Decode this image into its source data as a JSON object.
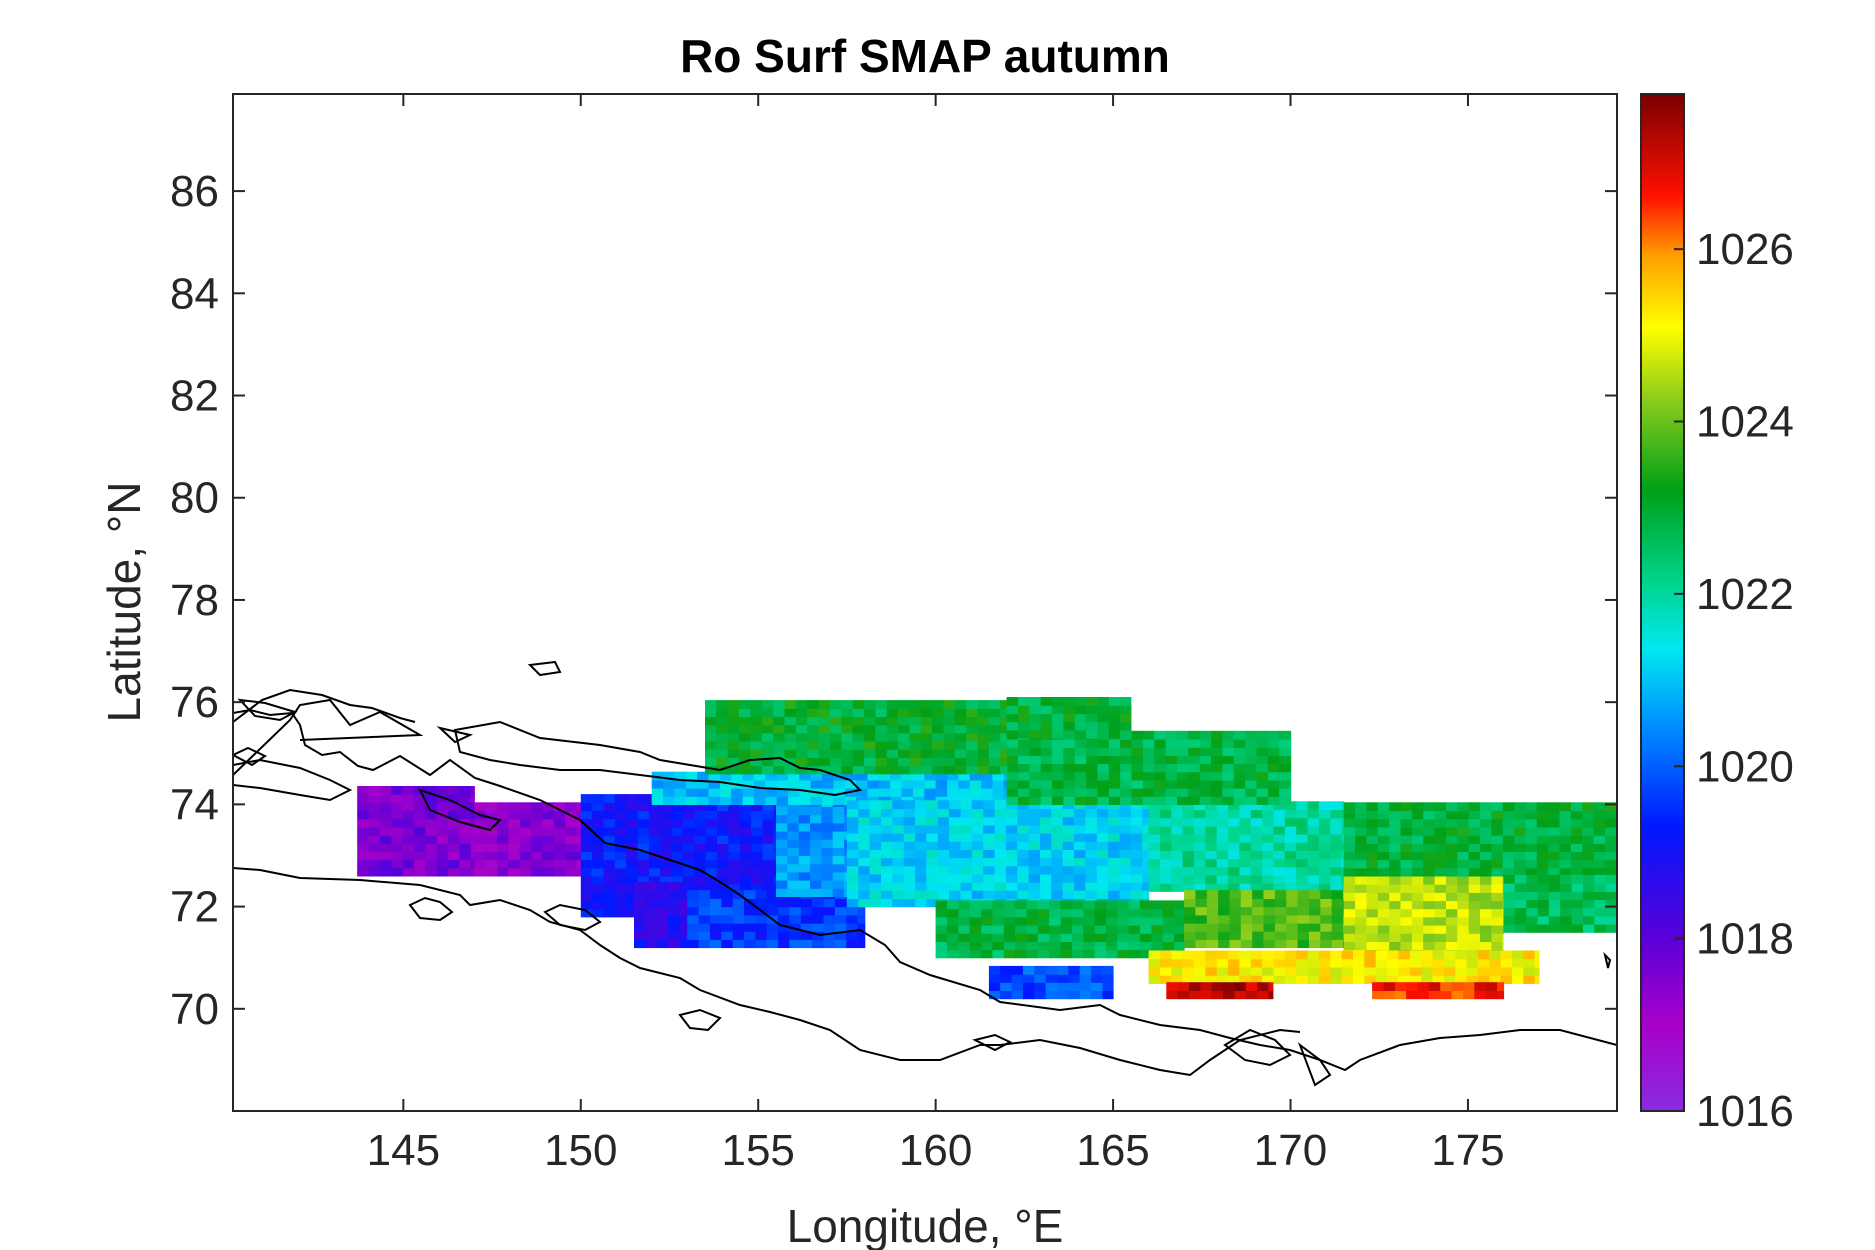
{
  "chart_data": {
    "type": "heatmap",
    "title": "Ro Surf SMAP autumn",
    "xlabel": "Longitude, °E",
    "ylabel": "Latitude, °N",
    "xlim": [
      140.2,
      179.2
    ],
    "ylim": [
      68.0,
      87.9
    ],
    "xticks": [
      145,
      150,
      155,
      160,
      165,
      170,
      175
    ],
    "yticks": [
      70,
      72,
      74,
      76,
      78,
      80,
      82,
      84,
      86
    ],
    "colorbar": {
      "range": [
        1016,
        1027.8
      ],
      "ticks": [
        1016,
        1018,
        1020,
        1022,
        1024,
        1026
      ],
      "colormap": "jet-like (violet-blue-cyan-green-yellow-red-darkred)"
    },
    "field_description": "Gridded surface density over the East Siberian Sea region; low values (~1017-1019) west of 156°E, cyan/green (~1021-1023) centrally, yellow-red (~1024-1027) along the southern coast near 167-178°E",
    "data_regions": [
      {
        "lon": [
          143.7,
          147.0
        ],
        "lat": [
          72.6,
          74.3
        ],
        "value": 1017.6
      },
      {
        "lon": [
          147.0,
          151.5
        ],
        "lat": [
          72.6,
          73.9
        ],
        "value": 1017.4
      },
      {
        "lon": [
          150.0,
          155.5
        ],
        "lat": [
          71.8,
          74.2
        ],
        "value": 1019.2
      },
      {
        "lon": [
          151.5,
          153.0
        ],
        "lat": [
          71.2,
          72.4
        ],
        "value": 1018.8
      },
      {
        "lon": [
          153.0,
          158.0
        ],
        "lat": [
          71.2,
          72.2
        ],
        "value": 1019.6
      },
      {
        "lon": [
          155.5,
          157.5
        ],
        "lat": [
          72.2,
          74.2
        ],
        "value": 1020.6
      },
      {
        "lon": [
          152.0,
          162.0
        ],
        "lat": [
          74.0,
          74.6
        ],
        "value": 1021.0
      },
      {
        "lon": [
          157.5,
          166.0
        ],
        "lat": [
          72.0,
          74.0
        ],
        "value": 1021.2
      },
      {
        "lon": [
          166.0,
          171.5
        ],
        "lat": [
          72.3,
          74.0
        ],
        "value": 1022.0
      },
      {
        "lon": [
          162.0,
          170.0
        ],
        "lat": [
          74.0,
          75.3
        ],
        "value": 1022.8
      },
      {
        "lon": [
          153.5,
          162.0
        ],
        "lat": [
          74.6,
          76.0
        ],
        "value": 1023.0
      },
      {
        "lon": [
          162.0,
          165.5
        ],
        "lat": [
          75.3,
          76.0
        ],
        "value": 1022.9
      },
      {
        "lon": [
          160.0,
          167.0
        ],
        "lat": [
          71.0,
          72.0
        ],
        "value": 1022.8
      },
      {
        "lon": [
          167.0,
          171.5
        ],
        "lat": [
          71.2,
          72.3
        ],
        "value": 1023.8
      },
      {
        "lon": [
          171.5,
          176.0
        ],
        "lat": [
          71.0,
          72.6
        ],
        "value": 1024.6
      },
      {
        "lon": [
          171.5,
          179.2
        ],
        "lat": [
          72.6,
          73.9
        ],
        "value": 1022.9
      },
      {
        "lon": [
          176.0,
          179.2
        ],
        "lat": [
          71.5,
          72.6
        ],
        "value": 1022.6
      },
      {
        "lon": [
          166.0,
          177.0
        ],
        "lat": [
          70.5,
          71.0
        ],
        "value": 1025.2
      },
      {
        "lon": [
          166.5,
          169.5
        ],
        "lat": [
          70.2,
          70.5
        ],
        "value": 1027.2
      },
      {
        "lon": [
          172.3,
          176.0
        ],
        "lat": [
          70.2,
          70.5
        ],
        "value": 1026.6
      },
      {
        "lon": [
          161.5,
          165.0
        ],
        "lat": [
          70.2,
          70.8
        ],
        "value": 1019.8
      }
    ]
  }
}
